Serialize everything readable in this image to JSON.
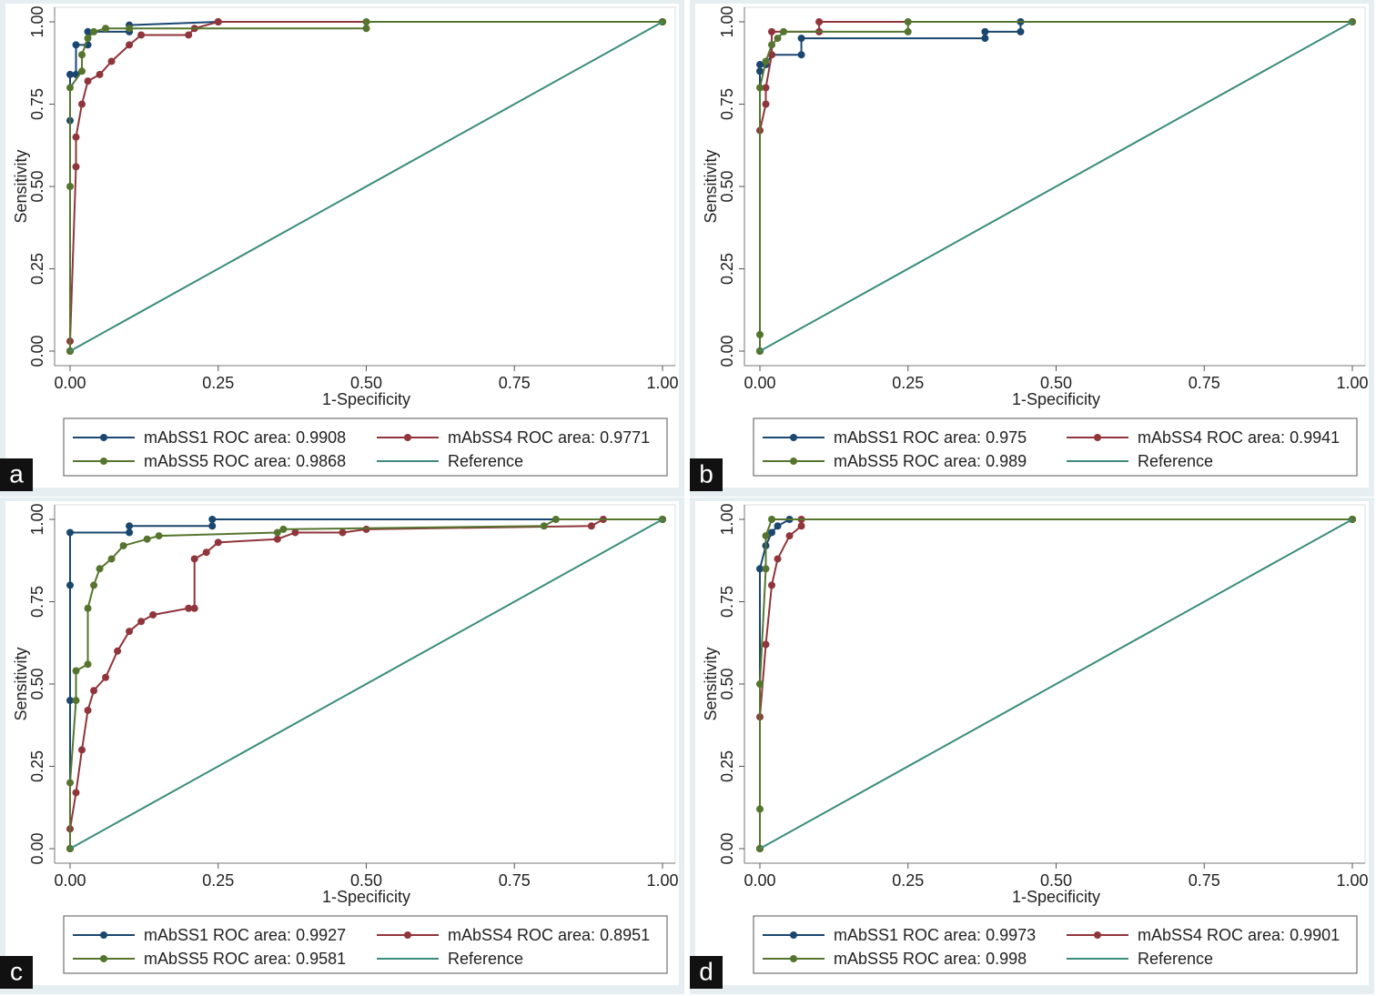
{
  "chart_data": [
    {
      "type": "line",
      "panel": "a",
      "xlabel": "1-Specificity",
      "ylabel": "Sensitivity",
      "xlim": [
        0,
        1
      ],
      "ylim": [
        0,
        1
      ],
      "xticks": [
        {
          "value": 0,
          "label": "0.00"
        },
        {
          "value": 0.25,
          "label": "0.25"
        },
        {
          "value": 0.5,
          "label": "0.50"
        },
        {
          "value": 0.75,
          "label": "0.75"
        },
        {
          "value": 1,
          "label": "1.00"
        }
      ],
      "yticks": [
        {
          "value": 0,
          "label": "0.00"
        },
        {
          "value": 0.25,
          "label": "0.25"
        },
        {
          "value": 0.5,
          "label": "0.50"
        },
        {
          "value": 0.75,
          "label": "0.75"
        },
        {
          "value": 1,
          "label": "1.00"
        }
      ],
      "series": [
        {
          "name": "mAbSS1 ROC area: 0.9908",
          "color": "#1a476f",
          "markers": true,
          "x": [
            0,
            0,
            0,
            0.01,
            0.01,
            0.03,
            0.03,
            0.1,
            0.1,
            0.25,
            1
          ],
          "values": [
            0,
            0.7,
            0.84,
            0.84,
            0.93,
            0.93,
            0.97,
            0.97,
            0.99,
            1,
            1
          ]
        },
        {
          "name": "mAbSS4 ROC area: 0.9771",
          "color": "#90353b",
          "markers": true,
          "x": [
            0,
            0,
            0.01,
            0.01,
            0.02,
            0.03,
            0.05,
            0.07,
            0.1,
            0.12,
            0.2,
            0.21,
            0.25,
            1
          ],
          "values": [
            0,
            0.03,
            0.56,
            0.65,
            0.75,
            0.82,
            0.84,
            0.88,
            0.93,
            0.96,
            0.96,
            0.98,
            1,
            1
          ]
        },
        {
          "name": "mAbSS5 ROC area: 0.9868",
          "color": "#55752f",
          "markers": true,
          "x": [
            0,
            0,
            0,
            0.02,
            0.02,
            0.03,
            0.04,
            0.06,
            0.1,
            0.5,
            0.5,
            1
          ],
          "values": [
            0,
            0.5,
            0.8,
            0.85,
            0.9,
            0.95,
            0.97,
            0.98,
            0.98,
            0.98,
            1,
            1
          ]
        },
        {
          "name": "Reference",
          "color": "#3a8c7a",
          "markers": false,
          "x": [
            0,
            1
          ],
          "values": [
            0,
            1
          ]
        }
      ]
    },
    {
      "type": "line",
      "panel": "b",
      "xlabel": "1-Specificity",
      "ylabel": "Sensitivity",
      "xlim": [
        0,
        1
      ],
      "ylim": [
        0,
        1
      ],
      "xticks": [
        {
          "value": 0,
          "label": "0.00"
        },
        {
          "value": 0.25,
          "label": "0.25"
        },
        {
          "value": 0.5,
          "label": "0.50"
        },
        {
          "value": 0.75,
          "label": "0.75"
        },
        {
          "value": 1,
          "label": "1.00"
        }
      ],
      "yticks": [
        {
          "value": 0,
          "label": "0.00"
        },
        {
          "value": 0.25,
          "label": "0.25"
        },
        {
          "value": 0.5,
          "label": "0.50"
        },
        {
          "value": 0.75,
          "label": "0.75"
        },
        {
          "value": 1,
          "label": "1.00"
        }
      ],
      "series": [
        {
          "name": "mAbSS1 ROC area: 0.975",
          "color": "#1a476f",
          "markers": true,
          "x": [
            0,
            0,
            0,
            0.01,
            0.02,
            0.07,
            0.07,
            0.38,
            0.38,
            0.44,
            0.44,
            1
          ],
          "values": [
            0,
            0.85,
            0.87,
            0.87,
            0.9,
            0.9,
            0.95,
            0.95,
            0.97,
            0.97,
            1,
            1
          ]
        },
        {
          "name": "mAbSS4 ROC area: 0.9941",
          "color": "#90353b",
          "markers": true,
          "x": [
            0,
            0,
            0.01,
            0.01,
            0.02,
            0.02,
            0.1,
            0.1,
            1
          ],
          "values": [
            0,
            0.67,
            0.75,
            0.8,
            0.9,
            0.97,
            0.97,
            1,
            1
          ]
        },
        {
          "name": "mAbSS5 ROC area: 0.989",
          "color": "#55752f",
          "markers": true,
          "x": [
            0,
            0,
            0,
            0.01,
            0.02,
            0.03,
            0.04,
            0.25,
            0.25,
            1
          ],
          "values": [
            0,
            0.05,
            0.8,
            0.88,
            0.93,
            0.95,
            0.97,
            0.97,
            1,
            1
          ]
        },
        {
          "name": "Reference",
          "color": "#3a8c7a",
          "markers": false,
          "x": [
            0,
            1
          ],
          "values": [
            0,
            1
          ]
        }
      ]
    },
    {
      "type": "line",
      "panel": "c",
      "xlabel": "1-Specificity",
      "ylabel": "Sensitivity",
      "xlim": [
        0,
        1
      ],
      "ylim": [
        0,
        1
      ],
      "xticks": [
        {
          "value": 0,
          "label": "0.00"
        },
        {
          "value": 0.25,
          "label": "0.25"
        },
        {
          "value": 0.5,
          "label": "0.50"
        },
        {
          "value": 0.75,
          "label": "0.75"
        },
        {
          "value": 1,
          "label": "1.00"
        }
      ],
      "yticks": [
        {
          "value": 0,
          "label": "0.00"
        },
        {
          "value": 0.25,
          "label": "0.25"
        },
        {
          "value": 0.5,
          "label": "0.50"
        },
        {
          "value": 0.75,
          "label": "0.75"
        },
        {
          "value": 1,
          "label": "1.00"
        }
      ],
      "series": [
        {
          "name": "mAbSS1 ROC area: 0.9927",
          "color": "#1a476f",
          "markers": true,
          "x": [
            0,
            0,
            0,
            0,
            0.1,
            0.1,
            0.24,
            0.24,
            1
          ],
          "values": [
            0,
            0.45,
            0.8,
            0.96,
            0.96,
            0.98,
            0.98,
            1,
            1
          ]
        },
        {
          "name": "mAbSS4 ROC area: 0.8951",
          "color": "#90353b",
          "markers": true,
          "x": [
            0,
            0,
            0.01,
            0.02,
            0.03,
            0.04,
            0.06,
            0.08,
            0.1,
            0.12,
            0.14,
            0.2,
            0.21,
            0.21,
            0.23,
            0.25,
            0.35,
            0.38,
            0.46,
            0.5,
            0.88,
            0.9,
            1
          ],
          "values": [
            0,
            0.06,
            0.17,
            0.3,
            0.42,
            0.48,
            0.52,
            0.6,
            0.66,
            0.69,
            0.71,
            0.73,
            0.73,
            0.88,
            0.9,
            0.93,
            0.94,
            0.96,
            0.96,
            0.97,
            0.98,
            1,
            1
          ]
        },
        {
          "name": "mAbSS5 ROC area: 0.9581",
          "color": "#55752f",
          "markers": true,
          "x": [
            0,
            0,
            0.01,
            0.01,
            0.03,
            0.03,
            0.04,
            0.05,
            0.07,
            0.09,
            0.13,
            0.15,
            0.35,
            0.36,
            0.8,
            0.82,
            1
          ],
          "values": [
            0,
            0.2,
            0.45,
            0.54,
            0.56,
            0.73,
            0.8,
            0.85,
            0.88,
            0.92,
            0.94,
            0.95,
            0.96,
            0.97,
            0.98,
            1,
            1
          ]
        },
        {
          "name": "Reference",
          "color": "#3a8c7a",
          "markers": false,
          "x": [
            0,
            1
          ],
          "values": [
            0,
            1
          ]
        }
      ]
    },
    {
      "type": "line",
      "panel": "d",
      "xlabel": "1-Specificity",
      "ylabel": "Sensitivity",
      "xlim": [
        0,
        1
      ],
      "ylim": [
        0,
        1
      ],
      "xticks": [
        {
          "value": 0,
          "label": "0.00"
        },
        {
          "value": 0.25,
          "label": "0.25"
        },
        {
          "value": 0.5,
          "label": "0.50"
        },
        {
          "value": 0.75,
          "label": "0.75"
        },
        {
          "value": 1,
          "label": "1.00"
        }
      ],
      "yticks": [
        {
          "value": 0,
          "label": "0.00"
        },
        {
          "value": 0.25,
          "label": "0.25"
        },
        {
          "value": 0.5,
          "label": "0.50"
        },
        {
          "value": 0.75,
          "label": "0.75"
        },
        {
          "value": 1,
          "label": "1.00"
        }
      ],
      "series": [
        {
          "name": "mAbSS1 ROC area: 0.9973",
          "color": "#1a476f",
          "markers": true,
          "x": [
            0,
            0,
            0.01,
            0.02,
            0.03,
            0.05,
            1
          ],
          "values": [
            0,
            0.85,
            0.92,
            0.96,
            0.98,
            1,
            1
          ]
        },
        {
          "name": "mAbSS4 ROC area: 0.9901",
          "color": "#90353b",
          "markers": true,
          "x": [
            0,
            0,
            0.01,
            0.02,
            0.03,
            0.05,
            0.07,
            0.07,
            1
          ],
          "values": [
            0,
            0.4,
            0.62,
            0.8,
            0.88,
            0.95,
            0.98,
            1,
            1
          ]
        },
        {
          "name": "mAbSS5 ROC area: 0.998",
          "color": "#55752f",
          "markers": true,
          "x": [
            0,
            0,
            0,
            0.01,
            0.01,
            0.02,
            1
          ],
          "values": [
            0,
            0.12,
            0.5,
            0.85,
            0.95,
            1,
            1
          ]
        },
        {
          "name": "Reference",
          "color": "#3a8c7a",
          "markers": false,
          "x": [
            0,
            1
          ],
          "values": [
            0,
            1
          ]
        }
      ]
    }
  ]
}
